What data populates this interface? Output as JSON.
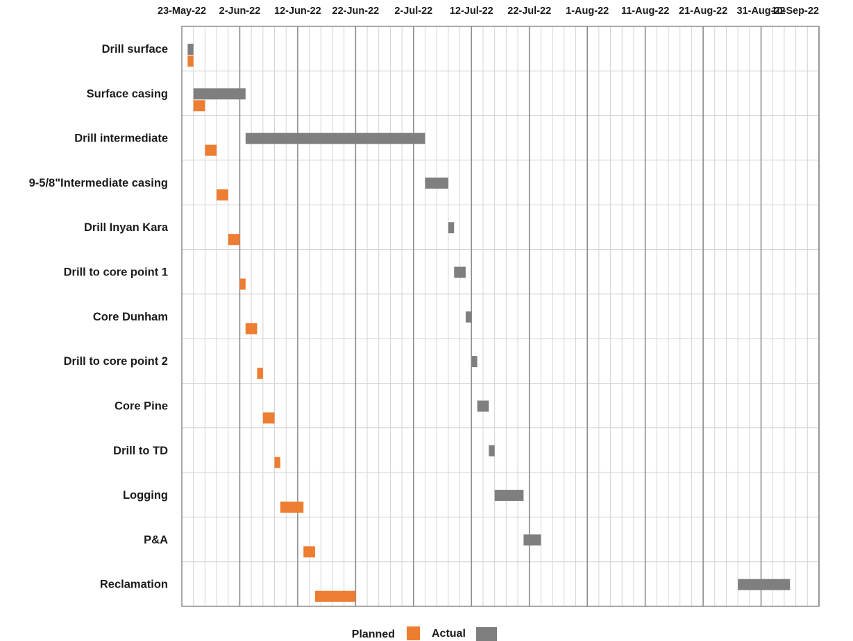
{
  "chart_data": {
    "type": "gantt",
    "date_ticks": [
      "23-May-22",
      "2-Jun-22",
      "12-Jun-22",
      "22-Jun-22",
      "2-Jul-22",
      "12-Jul-22",
      "22-Jul-22",
      "1-Aug-22",
      "11-Aug-22",
      "21-Aug-22",
      "31-Aug-22",
      "10-Sep-22"
    ],
    "x_range": [
      "2022-05-23",
      "2022-09-10"
    ],
    "grid": true,
    "legend_position": "bottom",
    "series": [
      {
        "name": "Planned",
        "color": "#ED7D31"
      },
      {
        "name": "Actual",
        "color": "#7F7F7F"
      }
    ],
    "tasks": [
      {
        "name": "Drill surface",
        "planned": [
          "2022-05-24",
          "2022-05-25"
        ],
        "actual": [
          "2022-05-24",
          "2022-05-25"
        ]
      },
      {
        "name": "Surface casing",
        "planned": [
          "2022-05-25",
          "2022-05-27"
        ],
        "actual": [
          "2022-05-25",
          "2022-06-03"
        ]
      },
      {
        "name": "Drill intermediate",
        "planned": [
          "2022-05-27",
          "2022-05-29"
        ],
        "actual": [
          "2022-06-03",
          "2022-07-04"
        ]
      },
      {
        "name": "9-5/8\"Intermediate casing",
        "planned": [
          "2022-05-29",
          "2022-05-31"
        ],
        "actual": [
          "2022-07-04",
          "2022-07-08"
        ]
      },
      {
        "name": "Drill Inyan Kara",
        "planned": [
          "2022-05-31",
          "2022-06-02"
        ],
        "actual": [
          "2022-07-08",
          "2022-07-09"
        ]
      },
      {
        "name": "Drill to core point 1",
        "planned": [
          "2022-06-02",
          "2022-06-03"
        ],
        "actual": [
          "2022-07-09",
          "2022-07-11"
        ]
      },
      {
        "name": "Core Dunham",
        "planned": [
          "2022-06-03",
          "2022-06-05"
        ],
        "actual": [
          "2022-07-11",
          "2022-07-12"
        ]
      },
      {
        "name": "Drill to core point 2",
        "planned": [
          "2022-06-05",
          "2022-06-06"
        ],
        "actual": [
          "2022-07-12",
          "2022-07-13"
        ]
      },
      {
        "name": "Core Pine",
        "planned": [
          "2022-06-06",
          "2022-06-08"
        ],
        "actual": [
          "2022-07-13",
          "2022-07-15"
        ]
      },
      {
        "name": "Drill to TD",
        "planned": [
          "2022-06-08",
          "2022-06-09"
        ],
        "actual": [
          "2022-07-15",
          "2022-07-16"
        ]
      },
      {
        "name": "Logging",
        "planned": [
          "2022-06-09",
          "2022-06-13"
        ],
        "actual": [
          "2022-07-16",
          "2022-07-21"
        ]
      },
      {
        "name": "P&A",
        "planned": [
          "2022-06-13",
          "2022-06-15"
        ],
        "actual": [
          "2022-07-21",
          "2022-07-24"
        ]
      },
      {
        "name": "Reclamation",
        "planned": [
          "2022-06-15",
          "2022-06-22"
        ],
        "actual": [
          "2022-08-27",
          "2022-09-05"
        ]
      }
    ]
  }
}
